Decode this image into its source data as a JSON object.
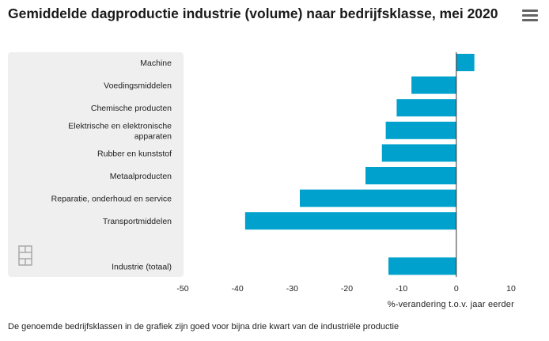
{
  "title": "Gemiddelde dagproductie industrie (volume) naar bedrijfsklasse, mei 2020",
  "footnote": "De genoemde bedrijfsklassen in de grafiek zijn goed voor bijna drie kwart van de industriële productie",
  "icons": {
    "menu": "hamburger-menu-icon",
    "logo": "cbs-logo-icon"
  },
  "colors": {
    "bar": "#00a1cd",
    "label_panel": "#efefef",
    "zero_line": "#333333"
  },
  "chart_data": {
    "type": "bar",
    "orientation": "horizontal",
    "title": "Gemiddelde dagproductie industrie (volume) naar bedrijfsklasse, mei 2020",
    "xlabel": "%-verandering t.o.v. jaar eerder",
    "ylabel": "",
    "categories": [
      [
        "Machine"
      ],
      [
        "Voedingsmiddelen"
      ],
      [
        "Chemische producten"
      ],
      [
        "Elektrische en elektronische",
        "apparaten"
      ],
      [
        "Rubber en kunststof"
      ],
      [
        "Metaalproducten"
      ],
      [
        "Reparatie, onderhoud en service"
      ],
      [
        "Transportmiddelen"
      ],
      [
        ""
      ],
      [
        "Industrie (totaal)"
      ]
    ],
    "values": [
      3.3,
      -8.2,
      -10.9,
      -12.9,
      -13.6,
      -16.6,
      -28.6,
      -38.6,
      null,
      -12.4
    ],
    "xlim": [
      -50,
      10
    ],
    "xticks": [
      -50,
      -40,
      -30,
      -20,
      -10,
      0,
      10
    ],
    "legend": "none"
  }
}
